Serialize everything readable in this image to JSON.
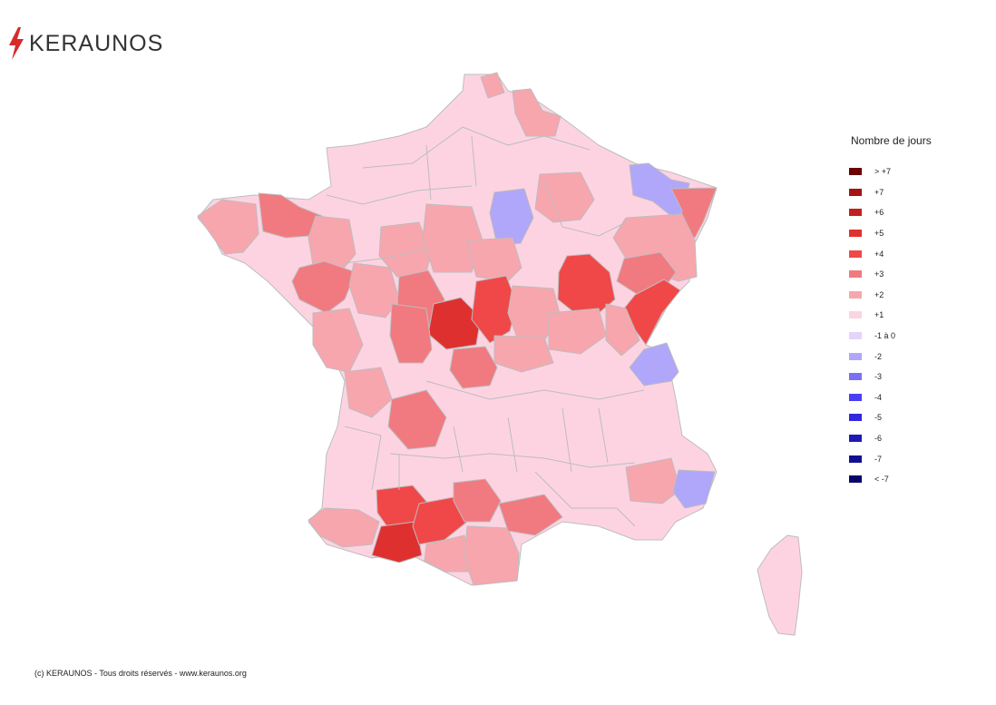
{
  "brand": {
    "name": "KERAUNOS",
    "accent": "#d62b2b"
  },
  "legend": {
    "title": "Nombre de jours",
    "items": [
      {
        "label": "> +7",
        "color": "#6b0000"
      },
      {
        "label": "+7",
        "color": "#a51313"
      },
      {
        "label": "+6",
        "color": "#c41f1f"
      },
      {
        "label": "+5",
        "color": "#df3030"
      },
      {
        "label": "+4",
        "color": "#f04848"
      },
      {
        "label": "+3",
        "color": "#f07a80"
      },
      {
        "label": "+2",
        "color": "#f7a6ae"
      },
      {
        "label": "+1",
        "color": "#fdd3e2"
      },
      {
        "label": "-1 à 0",
        "color": "#e4d4fb"
      },
      {
        "label": "-2",
        "color": "#b0a6fa"
      },
      {
        "label": "-3",
        "color": "#7c70f2"
      },
      {
        "label": "-4",
        "color": "#4a3ff0"
      },
      {
        "label": "-5",
        "color": "#3228dc"
      },
      {
        "label": "-6",
        "color": "#1e1ab6"
      },
      {
        "label": "-7",
        "color": "#12108e"
      },
      {
        "label": "< -7",
        "color": "#07056a"
      }
    ]
  },
  "map_data": {
    "type": "choropleth",
    "region": "France métropolitaine",
    "departments": [
      {
        "id": "seine-maritime",
        "level": "+1"
      },
      {
        "id": "nord",
        "level": "+1"
      },
      {
        "id": "nord-coast",
        "level": "+2"
      },
      {
        "id": "nord-east",
        "level": "+2"
      },
      {
        "id": "aisne",
        "level": "+1"
      },
      {
        "id": "ardennes",
        "level": "+1"
      },
      {
        "id": "meuse",
        "level": "+1"
      },
      {
        "id": "moselle",
        "level": "-2"
      },
      {
        "id": "bas-rhin",
        "level": "+3"
      },
      {
        "id": "haut-rhin",
        "level": "+2"
      },
      {
        "id": "vosges",
        "level": "+2"
      },
      {
        "id": "paris-region",
        "level": "-2"
      },
      {
        "id": "aube",
        "level": "+2"
      },
      {
        "id": "finistere",
        "level": "+2"
      },
      {
        "id": "cotes-d-armor",
        "level": "+3"
      },
      {
        "id": "ille-et-vilaine",
        "level": "+2"
      },
      {
        "id": "morbihan",
        "level": "+1"
      },
      {
        "id": "loire-atlantique",
        "level": "+3"
      },
      {
        "id": "maine-et-loire",
        "level": "+2"
      },
      {
        "id": "sarthe",
        "level": "+2"
      },
      {
        "id": "loir-et-cher",
        "level": "+3"
      },
      {
        "id": "loiret",
        "level": "+2"
      },
      {
        "id": "indre",
        "level": "+5"
      },
      {
        "id": "cher",
        "level": "+4"
      },
      {
        "id": "nievre",
        "level": "+2"
      },
      {
        "id": "cote-d-or",
        "level": "+4"
      },
      {
        "id": "haute-marne",
        "level": "+3"
      },
      {
        "id": "doubs",
        "level": "+4"
      },
      {
        "id": "ain",
        "level": "-2"
      },
      {
        "id": "vienne",
        "level": "+3"
      },
      {
        "id": "creuse",
        "level": "+3"
      },
      {
        "id": "dordogne",
        "level": "+3"
      },
      {
        "id": "gironde-landes",
        "level": "+1"
      },
      {
        "id": "pyrenees-atlantiques",
        "level": "+2"
      },
      {
        "id": "hautes-pyrenees",
        "level": "+5"
      },
      {
        "id": "gers",
        "level": "+4"
      },
      {
        "id": "haute-garonne",
        "level": "+4"
      },
      {
        "id": "tarn",
        "level": "+3"
      },
      {
        "id": "herault",
        "level": "+3"
      },
      {
        "id": "aude",
        "level": "+2"
      },
      {
        "id": "alpes-maritimes",
        "level": "-2"
      },
      {
        "id": "var",
        "level": "+2"
      },
      {
        "id": "corse",
        "level": "+1"
      }
    ]
  },
  "footer": {
    "copyright": "(c) KERAUNOS - Tous droits réservés - www.keraunos.org"
  }
}
